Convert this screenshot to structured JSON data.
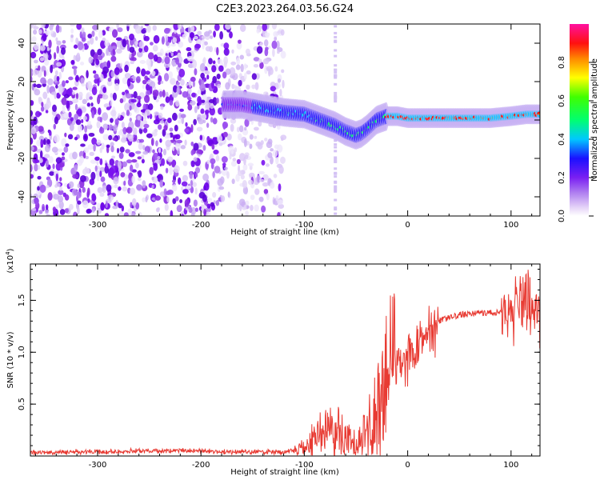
{
  "title": "C2E3.2023.264.03.56.G24",
  "chart_data": [
    {
      "type": "heatmap",
      "xlabel": "Height of straight line (km)",
      "ylabel": "Frequency (Hz)",
      "xlim": [
        -365,
        128
      ],
      "ylim": [
        -50,
        50
      ],
      "xticks": [
        -300,
        -200,
        -100,
        0,
        100
      ],
      "yticks": [
        -40,
        -20,
        0,
        20,
        40
      ],
      "colorbar": {
        "label": "Normalized spectral amplitude",
        "range": [
          0,
          1
        ],
        "ticks": [
          "0.0",
          "0.2",
          "0.4",
          "0.6",
          "0.8"
        ]
      },
      "ridge": {
        "x": [
          -175,
          -160,
          -140,
          -120,
          -100,
          -85,
          -70,
          -60,
          -50,
          -45,
          -40,
          -30,
          -20,
          -10,
          0,
          20,
          50,
          80,
          100,
          115,
          128
        ],
        "frequency": [
          8,
          8,
          6,
          4,
          3,
          0,
          -3,
          -6,
          -8,
          -7,
          -5,
          0,
          2,
          2,
          1,
          1,
          1,
          1,
          2,
          3,
          3
        ]
      },
      "grid": false,
      "legend": "colorbar-right"
    },
    {
      "type": "line",
      "xlabel": "Height of straight line (km)",
      "ylabel": "SNR (10 * v/v)",
      "yscale_label": "(x10",
      "yscale_exp": "4",
      "yscale_close": ")",
      "xlim": [
        -365,
        128
      ],
      "ylim": [
        0,
        1.85
      ],
      "xticks": [
        -300,
        -200,
        -100,
        0,
        100
      ],
      "yticks": [
        0.5,
        1.0,
        1.5
      ],
      "series": [
        {
          "color": "#e83b33",
          "x": [
            -365,
            -340,
            -320,
            -300,
            -280,
            -260,
            -240,
            -220,
            -200,
            -180,
            -160,
            -140,
            -120,
            -110,
            -100,
            -90,
            -80,
            -70,
            -60,
            -50,
            -40,
            -30,
            -20,
            -15,
            -10,
            0,
            10,
            20,
            30,
            40,
            50,
            60,
            70,
            80,
            90,
            100,
            105,
            110,
            115,
            118,
            122,
            128
          ],
          "values": [
            0.03,
            0.03,
            0.04,
            0.04,
            0.04,
            0.05,
            0.05,
            0.05,
            0.05,
            0.04,
            0.04,
            0.04,
            0.04,
            0.05,
            0.08,
            0.15,
            0.25,
            0.25,
            0.15,
            0.1,
            0.2,
            0.45,
            0.7,
            0.85,
            0.8,
            0.9,
            1.05,
            1.2,
            1.3,
            1.33,
            1.36,
            1.37,
            1.38,
            1.38,
            1.38,
            1.4,
            1.4,
            1.45,
            1.5,
            1.42,
            1.37,
            1.36
          ]
        }
      ],
      "grid": false
    }
  ]
}
